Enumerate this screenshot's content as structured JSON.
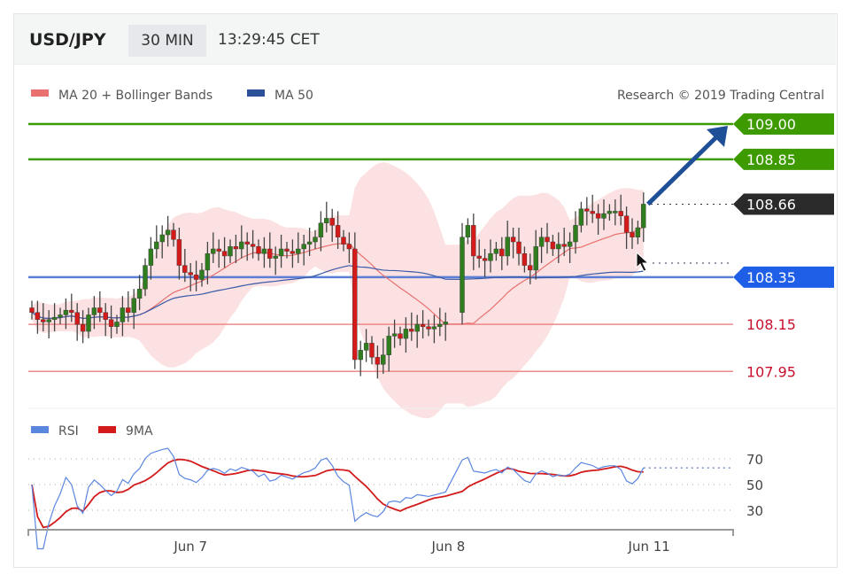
{
  "header": {
    "symbol": "USD/JPY",
    "timeframe": "30 MIN",
    "time": "13:29:45 CET"
  },
  "legend": {
    "ma20_bb": "MA 20 + Bollinger Bands",
    "ma50": "MA 50",
    "credit": "Research © 2019 Trading Central"
  },
  "rsi_legend": {
    "rsi": "RSI",
    "ma9": "9MA"
  },
  "colors": {
    "up": "#2f7d1f",
    "down": "#d51a1a",
    "band": "#fadcdc",
    "ma20": "#e8706f",
    "ma50": "#3a5aa8",
    "target": "#3d9a00",
    "current": "#2a2a2a",
    "pivot": "#1f5fe8",
    "support": "#c8102e",
    "arrow": "#1f4f96",
    "rsi": "#5b86e0",
    "rsi_ma": "#d31b1b"
  },
  "chart_data": {
    "type": "candlestick",
    "indicators": {
      "ma_short": 20,
      "bollinger_stddev": 2,
      "ma_long": 50,
      "rsi_period": 14,
      "rsi_ma": 9
    },
    "closes_segment1": [
      108.2,
      108.17,
      108.16,
      108.17,
      108.18,
      108.19,
      108.21,
      108.2,
      108.15,
      108.12,
      108.19,
      108.22,
      108.2,
      108.17,
      108.14,
      108.16,
      108.22,
      108.2,
      108.26,
      108.3,
      108.4,
      108.47,
      108.5,
      108.53,
      108.55,
      108.51,
      108.4,
      108.37,
      108.36,
      108.34,
      108.38,
      108.45,
      108.47,
      108.46,
      108.44,
      108.48,
      108.47,
      108.5,
      108.49,
      108.48,
      108.45,
      108.47,
      108.43,
      108.44,
      108.47,
      108.46,
      108.45,
      108.47,
      108.49,
      108.5,
      108.52,
      108.58,
      108.6,
      108.57,
      108.52,
      108.49,
      108.47,
      108.0,
      108.04,
      108.07,
      108.01,
      107.98,
      108.02,
      108.1,
      108.11,
      108.09,
      108.13,
      108.12,
      108.15,
      108.14,
      108.13,
      108.14,
      108.15,
      108.16
    ],
    "closes_segment2": [
      108.52,
      108.57,
      108.44,
      108.43,
      108.42,
      108.45,
      108.47,
      108.44,
      108.52,
      108.5,
      108.45,
      108.4,
      108.38,
      108.48,
      108.52,
      108.5,
      108.47,
      108.49,
      108.48,
      108.5,
      108.57,
      108.64,
      108.63,
      108.62,
      108.6,
      108.62,
      108.63,
      108.63,
      108.61,
      108.54,
      108.52,
      108.56,
      108.66
    ],
    "levels": [
      {
        "value": "109.00",
        "kind": "target"
      },
      {
        "value": "108.85",
        "kind": "target"
      },
      {
        "value": "108.66",
        "kind": "current"
      },
      {
        "value": "108.35",
        "kind": "pivot"
      },
      {
        "value": "108.15",
        "kind": "support"
      },
      {
        "value": "107.95",
        "kind": "support"
      }
    ],
    "rsi_ticks": [
      "70",
      "50",
      "30"
    ],
    "x_ticks": [
      {
        "label": "Jun 7",
        "candle": 28
      },
      {
        "label": "Jun 8",
        "candle": 73.5
      },
      {
        "label": "Jun 11",
        "candle": 107
      }
    ],
    "forecast_arrow": {
      "from": 108.66,
      "to": 109.0
    }
  }
}
